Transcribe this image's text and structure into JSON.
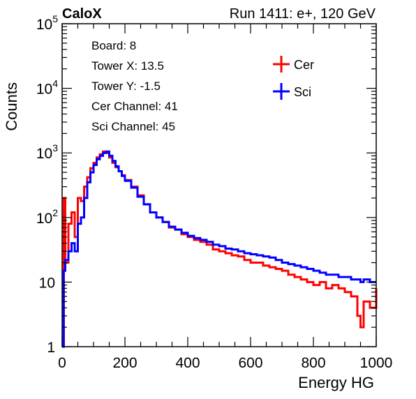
{
  "header": {
    "experiment": "CaloX",
    "run_label": "Run 1411: e+, 120 GeV"
  },
  "info_box": {
    "lines": [
      "Board: 8",
      "Tower X: 13.5",
      "Tower Y: -1.5",
      "Cer Channel: 41",
      "Sci Channel: 45"
    ]
  },
  "chart_data": {
    "type": "line",
    "xlabel": "Energy HG",
    "ylabel": "Counts",
    "xlim": [
      0,
      1000
    ],
    "ylim": [
      1,
      100000
    ],
    "y_scale": "log",
    "x_ticks": [
      0,
      200,
      400,
      600,
      800,
      1000
    ],
    "y_ticks": [
      {
        "value": 1,
        "base": "1",
        "exp": ""
      },
      {
        "value": 10,
        "base": "10",
        "exp": ""
      },
      {
        "value": 100,
        "base": "10",
        "exp": "2"
      },
      {
        "value": 1000,
        "base": "10",
        "exp": "3"
      },
      {
        "value": 10000,
        "base": "10",
        "exp": "4"
      },
      {
        "value": 100000,
        "base": "10",
        "exp": "5"
      }
    ],
    "legend_position": "top-right",
    "grid": false,
    "series": [
      {
        "name": "Cer",
        "color": "#ff0000",
        "x": [
          0,
          5,
          10,
          20,
          30,
          40,
          50,
          60,
          70,
          80,
          90,
          100,
          110,
          120,
          130,
          140,
          150,
          160,
          170,
          180,
          190,
          200,
          220,
          240,
          260,
          280,
          300,
          320,
          340,
          360,
          380,
          400,
          420,
          440,
          460,
          480,
          500,
          520,
          540,
          560,
          580,
          600,
          620,
          640,
          660,
          680,
          700,
          720,
          740,
          760,
          780,
          800,
          820,
          840,
          860,
          880,
          900,
          920,
          940,
          950,
          960,
          980,
          1000
        ],
        "y": [
          1,
          200,
          20,
          80,
          120,
          50,
          200,
          180,
          300,
          420,
          580,
          700,
          850,
          950,
          1050,
          1000,
          850,
          700,
          600,
          520,
          450,
          380,
          300,
          220,
          160,
          120,
          100,
          85,
          70,
          65,
          55,
          50,
          45,
          42,
          38,
          32,
          30,
          28,
          26,
          25,
          22,
          20,
          20,
          18,
          17,
          16,
          15,
          13,
          12,
          11,
          10,
          9,
          10,
          8,
          9,
          8,
          7,
          6,
          3,
          2,
          5,
          4,
          8
        ]
      },
      {
        "name": "Sci",
        "color": "#0000ff",
        "x": [
          0,
          5,
          10,
          20,
          30,
          40,
          50,
          60,
          70,
          80,
          90,
          100,
          110,
          120,
          130,
          140,
          150,
          160,
          170,
          180,
          190,
          200,
          220,
          240,
          260,
          280,
          300,
          320,
          340,
          360,
          380,
          400,
          420,
          440,
          460,
          480,
          500,
          520,
          540,
          560,
          580,
          600,
          620,
          640,
          660,
          680,
          700,
          720,
          740,
          760,
          780,
          800,
          820,
          840,
          860,
          880,
          900,
          920,
          940,
          950,
          960,
          980,
          1000
        ],
        "y": [
          1,
          15,
          22,
          30,
          40,
          30,
          80,
          100,
          200,
          350,
          500,
          650,
          800,
          900,
          1000,
          1050,
          900,
          750,
          620,
          520,
          440,
          370,
          290,
          210,
          160,
          120,
          100,
          85,
          72,
          65,
          58,
          52,
          48,
          45,
          42,
          38,
          36,
          33,
          32,
          30,
          28,
          27,
          26,
          25,
          24,
          22,
          20,
          19,
          18,
          17,
          16,
          15,
          14,
          13,
          13,
          12,
          12,
          11,
          11,
          10,
          11,
          10,
          10
        ]
      }
    ]
  }
}
